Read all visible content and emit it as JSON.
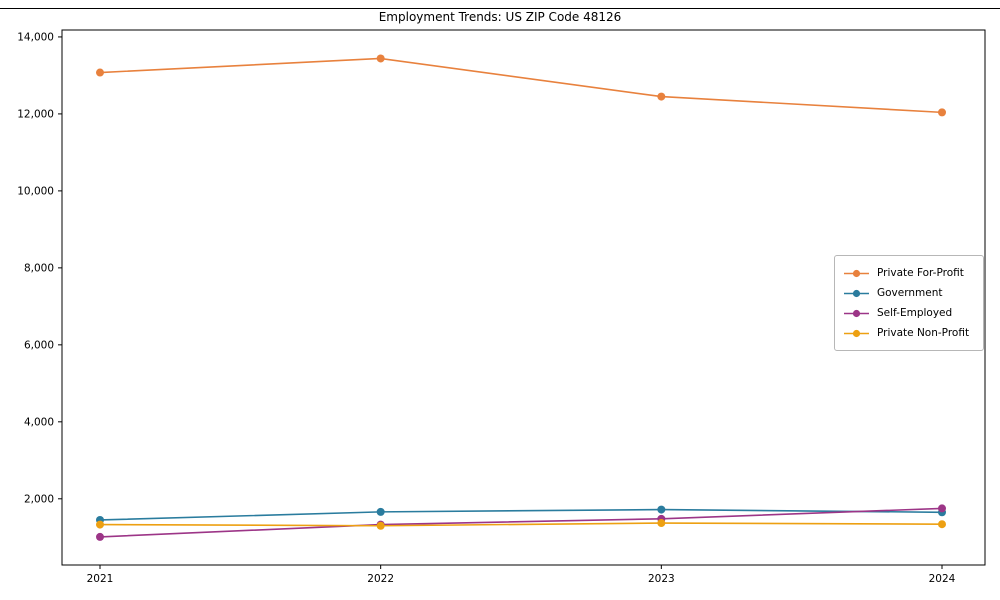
{
  "chart_data": {
    "type": "line",
    "title": "Employment Trends: US ZIP Code 48126",
    "categories": [
      "2021",
      "2022",
      "2023",
      "2024"
    ],
    "series": [
      {
        "name": "Private For-Profit",
        "color": "#e8813d",
        "values": [
          13075,
          13440,
          12450,
          12040
        ]
      },
      {
        "name": "Government",
        "color": "#2a7c9e",
        "values": [
          1450,
          1660,
          1720,
          1650
        ]
      },
      {
        "name": "Self-Employed",
        "color": "#9c3587",
        "values": [
          1010,
          1330,
          1480,
          1750
        ]
      },
      {
        "name": "Private Non-Profit",
        "color": "#eda012",
        "values": [
          1330,
          1300,
          1370,
          1340
        ]
      }
    ],
    "yticks": [
      {
        "value": 2000,
        "label": "2,000"
      },
      {
        "value": 4000,
        "label": "4,000"
      },
      {
        "value": 6000,
        "label": "6,000"
      },
      {
        "value": 8000,
        "label": "8,000"
      },
      {
        "value": 10000,
        "label": "10,000"
      },
      {
        "value": 12000,
        "label": "12,000"
      },
      {
        "value": 14000,
        "label": "14,000"
      }
    ],
    "ylim": [
      280,
      14180
    ],
    "xlabel": "",
    "ylabel": "",
    "grid": false,
    "legend_position": "center-right",
    "marker": "circle"
  }
}
